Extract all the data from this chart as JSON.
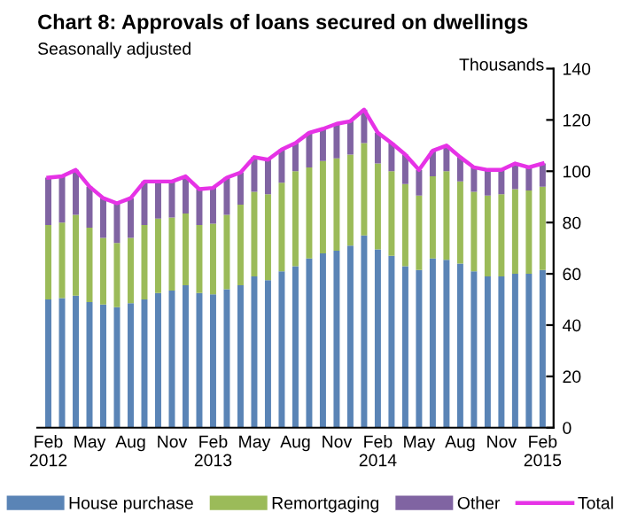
{
  "chart_data": {
    "type": "bar",
    "stacked": true,
    "title": "Chart 8: Approvals of loans secured on dwellings",
    "subtitle": "Seasonally adjusted",
    "ylabel": "Thousands",
    "categories": [
      "Feb\n2012",
      null,
      null,
      "May",
      null,
      null,
      "Aug",
      null,
      null,
      "Nov",
      null,
      null,
      "Feb\n2013",
      null,
      null,
      "May",
      null,
      null,
      "Aug",
      null,
      null,
      "Nov",
      null,
      null,
      "Feb\n2014",
      null,
      null,
      "May",
      null,
      null,
      "Aug",
      null,
      null,
      "Nov",
      null,
      null,
      "Feb\n2015"
    ],
    "series": [
      {
        "name": "House purchase",
        "color": "#5a84b6",
        "values": [
          50,
          50.5,
          51.5,
          49,
          48,
          47,
          48.5,
          50,
          52.5,
          53.5,
          55.5,
          52.5,
          52,
          54,
          55.5,
          59,
          57.5,
          61,
          63,
          66,
          68,
          69,
          71,
          75,
          69.5,
          67,
          63,
          61.5,
          66,
          65.5,
          64,
          61,
          59,
          59,
          60,
          60,
          61.5
        ]
      },
      {
        "name": "Remortgaging",
        "color": "#9bbb59",
        "values": [
          29,
          29.5,
          31.5,
          29,
          26,
          25,
          25.5,
          29,
          29,
          28.5,
          28,
          26.5,
          27.5,
          29,
          31.5,
          33,
          33.5,
          34.5,
          37,
          35.5,
          36,
          36,
          35.5,
          36,
          33.5,
          33,
          32,
          29,
          32,
          34.5,
          32,
          31,
          31.5,
          32,
          33,
          32.5,
          32.5
        ]
      },
      {
        "name": "Other",
        "color": "#8064a2",
        "values": [
          18.5,
          18,
          17.5,
          16,
          15.5,
          15.5,
          15.5,
          17,
          14.5,
          14,
          14.5,
          14,
          14,
          14.5,
          12.5,
          13.5,
          13.5,
          13,
          11,
          13.5,
          12.5,
          13.5,
          13,
          13,
          12,
          11,
          11.5,
          10,
          10,
          10,
          9.5,
          9.5,
          10,
          9.5,
          10,
          9,
          9
        ]
      },
      {
        "name": "Total",
        "type": "line",
        "color": "#e632e6",
        "values": [
          97.5,
          98,
          100.5,
          94,
          89.5,
          87.5,
          89.5,
          96,
          96,
          96,
          98,
          93,
          93.5,
          97.5,
          99.5,
          105.5,
          104.5,
          108.5,
          111,
          115,
          116.5,
          118.5,
          119.5,
          124,
          115,
          111,
          106.5,
          100.5,
          108,
          110,
          105.5,
          101.5,
          100.5,
          100.5,
          103,
          101.5,
          103
        ]
      }
    ],
    "ylim": [
      0,
      140
    ],
    "yticks": [
      0,
      20,
      40,
      60,
      80,
      100,
      120,
      140
    ],
    "grid": false,
    "legend": "bottom"
  }
}
